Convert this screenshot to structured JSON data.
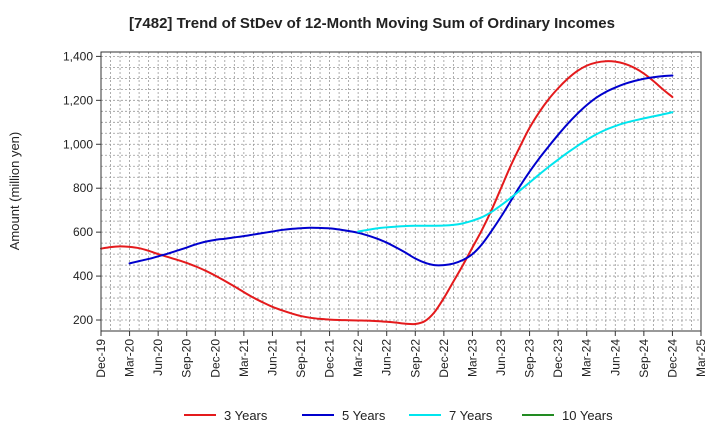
{
  "chart_data": {
    "type": "line",
    "title": "[7482]  Trend of StDev of 12-Month Moving Sum of Ordinary Incomes",
    "xlabel": "",
    "ylabel": "Amount (million yen)",
    "ylim": [
      150,
      1420
    ],
    "yticks": [
      200,
      400,
      600,
      800,
      "1,000",
      "1,200",
      "1,400"
    ],
    "x_ticks": [
      "Dec-19",
      "Mar-20",
      "Jun-20",
      "Sep-20",
      "Dec-20",
      "Mar-21",
      "Jun-21",
      "Sep-21",
      "Dec-21",
      "Mar-22",
      "Jun-22",
      "Sep-22",
      "Dec-22",
      "Mar-23",
      "Jun-23",
      "Sep-23",
      "Dec-23",
      "Mar-24",
      "Jun-24",
      "Sep-24",
      "Dec-24",
      "Mar-25"
    ],
    "grid": true,
    "legend_position": "bottom",
    "series": [
      {
        "name": "3 Years",
        "color": "#e41a1c",
        "points": [
          [
            "Dec-19",
            525
          ],
          [
            "Jan-20",
            532
          ],
          [
            "Feb-20",
            535
          ],
          [
            "Mar-20",
            533
          ],
          [
            "Apr-20",
            527
          ],
          [
            "May-20",
            515
          ],
          [
            "Jun-20",
            500
          ],
          [
            "Jul-20",
            487
          ],
          [
            "Aug-20",
            474
          ],
          [
            "Sep-20",
            460
          ],
          [
            "Oct-20",
            443
          ],
          [
            "Nov-20",
            424
          ],
          [
            "Dec-20",
            402
          ],
          [
            "Jan-21",
            378
          ],
          [
            "Feb-21",
            353
          ],
          [
            "Mar-21",
            327
          ],
          [
            "Apr-21",
            302
          ],
          [
            "May-21",
            280
          ],
          [
            "Jun-21",
            260
          ],
          [
            "Jul-21",
            244
          ],
          [
            "Aug-21",
            230
          ],
          [
            "Sep-21",
            218
          ],
          [
            "Oct-21",
            210
          ],
          [
            "Nov-21",
            205
          ],
          [
            "Dec-21",
            202
          ],
          [
            "Jan-22",
            200
          ],
          [
            "Feb-22",
            199
          ],
          [
            "Mar-22",
            198
          ],
          [
            "Apr-22",
            197
          ],
          [
            "May-22",
            195
          ],
          [
            "Jun-22",
            192
          ],
          [
            "Jul-22",
            188
          ],
          [
            "Aug-22",
            183
          ],
          [
            "Sep-22",
            182
          ],
          [
            "Oct-22",
            195
          ],
          [
            "Nov-22",
            235
          ],
          [
            "Dec-22",
            300
          ],
          [
            "Jan-23",
            375
          ],
          [
            "Feb-23",
            450
          ],
          [
            "Mar-23",
            530
          ],
          [
            "Apr-23",
            610
          ],
          [
            "May-23",
            700
          ],
          [
            "Jun-23",
            800
          ],
          [
            "Jul-23",
            900
          ],
          [
            "Aug-23",
            990
          ],
          [
            "Sep-23",
            1075
          ],
          [
            "Oct-23",
            1145
          ],
          [
            "Nov-23",
            1205
          ],
          [
            "Dec-23",
            1255
          ],
          [
            "Jan-24",
            1298
          ],
          [
            "Feb-24",
            1333
          ],
          [
            "Mar-24",
            1358
          ],
          [
            "Apr-24",
            1372
          ],
          [
            "May-24",
            1378
          ],
          [
            "Jun-24",
            1376
          ],
          [
            "Jul-24",
            1366
          ],
          [
            "Aug-24",
            1348
          ],
          [
            "Sep-24",
            1322
          ],
          [
            "Oct-24",
            1288
          ],
          [
            "Nov-24",
            1250
          ],
          [
            "Dec-24",
            1215
          ]
        ]
      },
      {
        "name": "5 Years",
        "color": "#0000cd",
        "points": [
          [
            "Mar-20",
            458
          ],
          [
            "Apr-20",
            468
          ],
          [
            "May-20",
            478
          ],
          [
            "Jun-20",
            490
          ],
          [
            "Jul-20",
            502
          ],
          [
            "Aug-20",
            516
          ],
          [
            "Sep-20",
            530
          ],
          [
            "Oct-20",
            545
          ],
          [
            "Nov-20",
            557
          ],
          [
            "Dec-20",
            565
          ],
          [
            "Jan-21",
            570
          ],
          [
            "Feb-21",
            576
          ],
          [
            "Mar-21",
            582
          ],
          [
            "Apr-21",
            589
          ],
          [
            "May-21",
            596
          ],
          [
            "Jun-21",
            603
          ],
          [
            "Jul-21",
            610
          ],
          [
            "Aug-21",
            615
          ],
          [
            "Sep-21",
            618
          ],
          [
            "Oct-21",
            620
          ],
          [
            "Nov-21",
            619
          ],
          [
            "Dec-21",
            617
          ],
          [
            "Jan-22",
            612
          ],
          [
            "Feb-22",
            605
          ],
          [
            "Mar-22",
            597
          ],
          [
            "Apr-22",
            585
          ],
          [
            "May-22",
            570
          ],
          [
            "Jun-22",
            552
          ],
          [
            "Jul-22",
            530
          ],
          [
            "Aug-22",
            506
          ],
          [
            "Sep-22",
            480
          ],
          [
            "Oct-22",
            461
          ],
          [
            "Nov-22",
            450
          ],
          [
            "Dec-22",
            450
          ],
          [
            "Jan-23",
            457
          ],
          [
            "Feb-23",
            473
          ],
          [
            "Mar-23",
            500
          ],
          [
            "Apr-23",
            545
          ],
          [
            "May-23",
            605
          ],
          [
            "Jun-23",
            670
          ],
          [
            "Jul-23",
            740
          ],
          [
            "Aug-23",
            810
          ],
          [
            "Sep-23",
            875
          ],
          [
            "Oct-23",
            935
          ],
          [
            "Nov-23",
            990
          ],
          [
            "Dec-23",
            1043
          ],
          [
            "Jan-24",
            1093
          ],
          [
            "Feb-24",
            1138
          ],
          [
            "Mar-24",
            1178
          ],
          [
            "Apr-24",
            1212
          ],
          [
            "May-24",
            1238
          ],
          [
            "Jun-24",
            1258
          ],
          [
            "Jul-24",
            1275
          ],
          [
            "Aug-24",
            1288
          ],
          [
            "Sep-24",
            1298
          ],
          [
            "Oct-24",
            1305
          ],
          [
            "Nov-24",
            1310
          ],
          [
            "Dec-24",
            1313
          ]
        ]
      },
      {
        "name": "7 Years",
        "color": "#00e5ee",
        "points": [
          [
            "Mar-22",
            603
          ],
          [
            "Apr-22",
            610
          ],
          [
            "May-22",
            617
          ],
          [
            "Jun-22",
            622
          ],
          [
            "Jul-22",
            625
          ],
          [
            "Aug-22",
            628
          ],
          [
            "Sep-22",
            629
          ],
          [
            "Oct-22",
            629
          ],
          [
            "Nov-22",
            629
          ],
          [
            "Dec-22",
            630
          ],
          [
            "Jan-23",
            633
          ],
          [
            "Feb-23",
            640
          ],
          [
            "Mar-23",
            652
          ],
          [
            "Apr-23",
            668
          ],
          [
            "May-23",
            692
          ],
          [
            "Jun-23",
            722
          ],
          [
            "Jul-23",
            755
          ],
          [
            "Aug-23",
            790
          ],
          [
            "Sep-23",
            826
          ],
          [
            "Oct-23",
            862
          ],
          [
            "Nov-23",
            897
          ],
          [
            "Dec-23",
            930
          ],
          [
            "Jan-24",
            962
          ],
          [
            "Feb-24",
            992
          ],
          [
            "Mar-24",
            1020
          ],
          [
            "Apr-24",
            1045
          ],
          [
            "May-24",
            1066
          ],
          [
            "Jun-24",
            1083
          ],
          [
            "Jul-24",
            1097
          ],
          [
            "Aug-24",
            1108
          ],
          [
            "Sep-24",
            1118
          ],
          [
            "Oct-24",
            1127
          ],
          [
            "Nov-24",
            1136
          ],
          [
            "Dec-24",
            1146
          ]
        ]
      },
      {
        "name": "10 Years",
        "color": "#228b22",
        "points": []
      }
    ]
  }
}
